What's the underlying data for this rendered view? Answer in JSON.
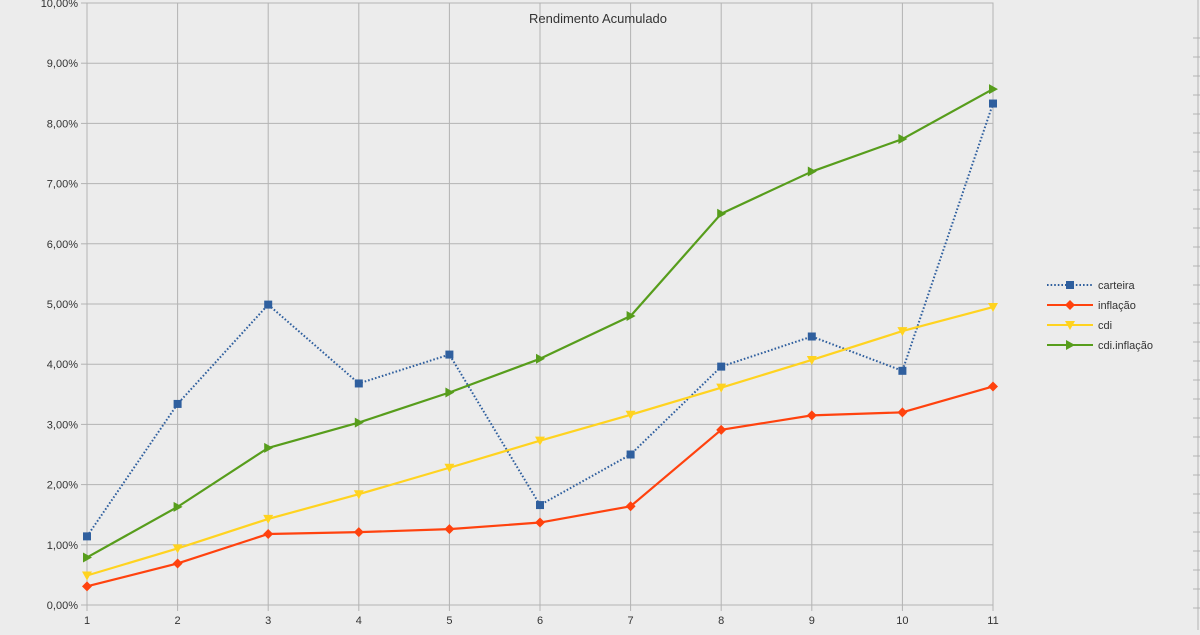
{
  "chart_data": {
    "type": "line",
    "title": "Rendimento Acumulado",
    "xlabel": "",
    "ylabel": "",
    "x": [
      1,
      2,
      3,
      4,
      5,
      6,
      7,
      8,
      9,
      10,
      11
    ],
    "ylim": [
      0,
      10
    ],
    "yticks": [
      "0,00%",
      "1,00%",
      "2,00%",
      "3,00%",
      "4,00%",
      "5,00%",
      "6,00%",
      "7,00%",
      "8,00%",
      "9,00%",
      "10,00%"
    ],
    "grid": true,
    "legend_position": "right",
    "series": [
      {
        "name": "carteira",
        "color": "#2f5f9e",
        "marker": "square",
        "dash": "dotted",
        "values": [
          1.14,
          3.34,
          4.99,
          3.68,
          4.16,
          1.66,
          2.5,
          3.96,
          4.46,
          3.89,
          8.33
        ]
      },
      {
        "name": "inflação",
        "color": "#ff420e",
        "marker": "diamond",
        "dash": "solid",
        "values": [
          0.31,
          0.69,
          1.18,
          1.21,
          1.26,
          1.37,
          1.64,
          2.91,
          3.15,
          3.2,
          3.63
        ]
      },
      {
        "name": "cdi",
        "color": "#ffd320",
        "marker": "triangle-down",
        "dash": "solid",
        "values": [
          0.49,
          0.94,
          1.43,
          1.84,
          2.28,
          2.73,
          3.16,
          3.61,
          4.07,
          4.55,
          4.95
        ]
      },
      {
        "name": "cdi.inflação",
        "color": "#579d1c",
        "marker": "triangle-right",
        "dash": "solid",
        "values": [
          0.79,
          1.63,
          2.61,
          3.03,
          3.53,
          4.09,
          4.8,
          6.5,
          7.2,
          7.74,
          8.57
        ]
      }
    ]
  }
}
